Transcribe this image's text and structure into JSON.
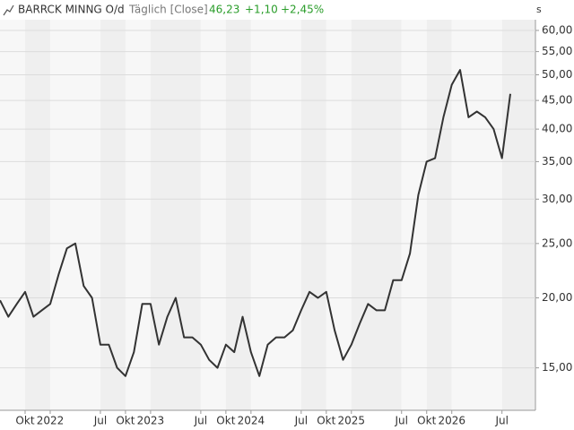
{
  "chart_data": {
    "type": "line",
    "title": "BARRCK MINNG O/d",
    "subtitle": "Täglich [Close]",
    "annotations": [
      "46,23",
      "+1,10",
      "+2,45%"
    ],
    "y_unit": "s",
    "log_scale": true,
    "grid": true,
    "color": "#333333",
    "x": [
      "2021-07",
      "2021-08",
      "2021-09",
      "2021-10",
      "2021-11",
      "2021-12",
      "2022-01",
      "2022-02",
      "2022-03",
      "2022-04",
      "2022-05",
      "2022-06",
      "2022-07",
      "2022-08",
      "2022-09",
      "2022-10",
      "2022-11",
      "2022-12",
      "2023-01",
      "2023-02",
      "2023-03",
      "2023-04",
      "2023-05",
      "2023-06",
      "2023-07",
      "2023-08",
      "2023-09",
      "2023-10",
      "2023-11",
      "2023-12",
      "2024-01",
      "2024-02",
      "2024-03",
      "2024-04",
      "2024-05",
      "2024-06",
      "2024-07",
      "2024-08",
      "2024-09",
      "2024-10",
      "2024-11",
      "2024-12",
      "2025-01",
      "2025-02",
      "2025-03",
      "2025-04",
      "2025-05",
      "2025-06",
      "2025-07",
      "2025-08",
      "2025-09",
      "2025-10",
      "2025-11",
      "2025-12",
      "2026-01",
      "2026-02",
      "2026-03",
      "2026-04",
      "2026-05",
      "2026-06",
      "2026-07",
      "2026-08"
    ],
    "values": [
      19.8,
      18.5,
      19.5,
      20.5,
      18.5,
      19,
      19.5,
      22,
      24.5,
      25,
      21,
      20,
      16.5,
      16.5,
      15,
      14.5,
      16,
      19.5,
      19.5,
      16.5,
      18.5,
      20,
      17,
      17,
      16.5,
      15.5,
      15,
      16.5,
      16,
      18.5,
      16,
      14.5,
      16.5,
      17,
      17,
      17.5,
      19,
      20.5,
      20,
      20.5,
      17.5,
      15.5,
      16.5,
      18,
      19.5,
      19,
      19,
      21.5,
      21.5,
      24,
      30.5,
      35,
      35.5,
      42,
      48,
      51,
      42,
      43,
      42,
      40,
      35.5,
      46.23
    ],
    "xlim": [
      "2021-07",
      "2026-11"
    ],
    "xticks": [
      {
        "value": "2021-10",
        "label": "Okt"
      },
      {
        "value": "2022-01",
        "label": "2022"
      },
      {
        "value": "2022-07",
        "label": "Jul"
      },
      {
        "value": "2022-10",
        "label": "Okt"
      },
      {
        "value": "2023-01",
        "label": "2023"
      },
      {
        "value": "2023-07",
        "label": "Jul"
      },
      {
        "value": "2023-10",
        "label": "Okt"
      },
      {
        "value": "2024-01",
        "label": "2024"
      },
      {
        "value": "2024-07",
        "label": "Jul"
      },
      {
        "value": "2024-10",
        "label": "Okt"
      },
      {
        "value": "2025-01",
        "label": "2025"
      },
      {
        "value": "2025-07",
        "label": "Jul"
      },
      {
        "value": "2025-10",
        "label": "Okt"
      },
      {
        "value": "2026-01",
        "label": "2026"
      },
      {
        "value": "2026-07",
        "label": "Jul"
      }
    ],
    "ylim": [
      12.6,
      62.7
    ],
    "yticks": [
      {
        "value": 15,
        "label": "15,00"
      },
      {
        "value": 20,
        "label": "20,00"
      },
      {
        "value": 25,
        "label": "25,00"
      },
      {
        "value": 30,
        "label": "30,00"
      },
      {
        "value": 35,
        "label": "35,00"
      },
      {
        "value": 40,
        "label": "40,00"
      },
      {
        "value": 45,
        "label": "45,00"
      },
      {
        "value": 50,
        "label": "50,00"
      },
      {
        "value": 55,
        "label": "55,00"
      },
      {
        "value": 60,
        "label": "60,00"
      }
    ]
  }
}
